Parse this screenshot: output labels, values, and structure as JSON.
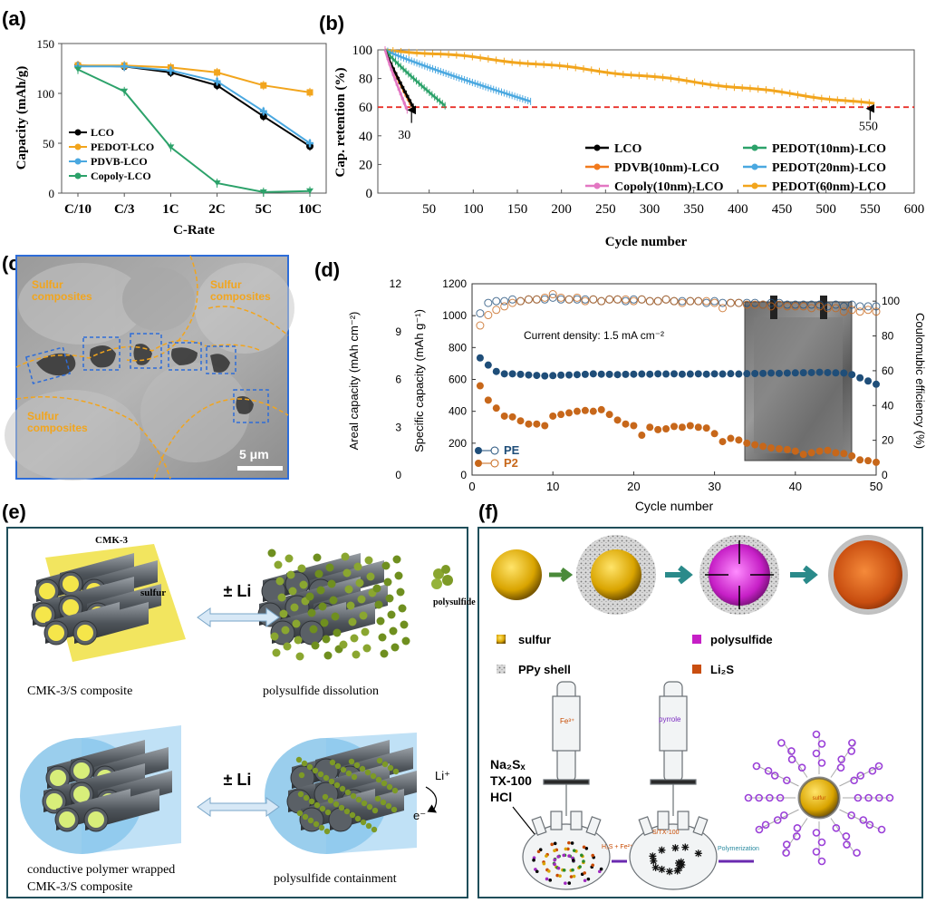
{
  "panels": {
    "a": "(a)",
    "b": "(b)",
    "c": "(c)",
    "d": "(d)",
    "e": "(e)",
    "f": "(f)"
  },
  "colors": {
    "lco": "#000000",
    "pedot": "#f2a51d",
    "pdvb": "#4aa8e0",
    "copoly": "#2ca26a",
    "pink": "#e377c2",
    "orange_line": "#f27a1d",
    "red_dash": "#e8312a",
    "pe": "#1f4e79",
    "p2": "#c7671a",
    "sem_dash": "#f2a51d",
    "sem_box": "#2e6dd8"
  },
  "chart_data": [
    {
      "type": "line",
      "panel": "a",
      "categories": [
        "C/10",
        "C/3",
        "1C",
        "2C",
        "5C",
        "10C"
      ],
      "ylabel": "Capacity (mAh/g)",
      "xlabel": "C-Rate",
      "ylim": [
        0,
        150
      ],
      "yticks": [
        "0",
        "50",
        "100",
        "150"
      ],
      "series": [
        {
          "name": "LCO",
          "values": [
            128,
            127,
            121,
            108,
            77,
            47
          ],
          "color": "#000000"
        },
        {
          "name": "PEDOT-LCO",
          "values": [
            128,
            128,
            126,
            121,
            108,
            101
          ],
          "color": "#f2a51d"
        },
        {
          "name": "PDVB-LCO",
          "values": [
            127,
            127,
            123,
            112,
            82,
            50
          ],
          "color": "#4aa8e0"
        },
        {
          "name": "Copoly-LCO",
          "values": [
            124,
            102,
            46,
            10,
            1,
            2
          ],
          "color": "#2ca26a"
        }
      ],
      "legend": "bottom-left"
    },
    {
      "type": "line",
      "panel": "b",
      "xlabel": "Cycle number",
      "ylabel": "Cap. retention (%)",
      "xlim": [
        0,
        600
      ],
      "ylim": [
        0,
        100
      ],
      "xticks": [
        "50",
        "100",
        "150",
        "200",
        "250",
        "300",
        "350",
        "400",
        "450",
        "500",
        "550",
        "600"
      ],
      "yticks": [
        "0",
        "20",
        "40",
        "60",
        "80",
        "100"
      ],
      "threshold": 60,
      "annotations": [
        "30",
        "550"
      ],
      "series": [
        {
          "name": "LCO",
          "end": 32,
          "endval": 60,
          "color": "#000000"
        },
        {
          "name": "PDVB(10nm)-LCO",
          "end": 30,
          "endval": 61,
          "color": "#f27a1d"
        },
        {
          "name": "Copoly(10nm)-LCO",
          "end": 25,
          "endval": 58,
          "color": "#e377c2"
        },
        {
          "name": "PEDOT(10nm)-LCO",
          "end": 68,
          "endval": 61,
          "color": "#2ca26a"
        },
        {
          "name": "PEDOT(20nm)-LCO",
          "end": 165,
          "endval": 64,
          "color": "#4aa8e0"
        },
        {
          "name": "PEDOT(60nm)-LCO",
          "end": 555,
          "endval": 62,
          "color": "#f2a51d"
        }
      ],
      "legend": "bottom-right"
    },
    {
      "type": "scatter",
      "panel": "d",
      "xlabel": "Cycle number",
      "ylabel": "Specific capacity (mAh g⁻¹)",
      "ylabel_left": "Areal capacity (mAh cm⁻²)",
      "ylabel_right": "Coulomubic efficiency (%)",
      "annotation": "Current density: 1.5 mA cm⁻²",
      "xlim": [
        0,
        50
      ],
      "ylim": [
        0,
        1200
      ],
      "y2lim": [
        0,
        110
      ],
      "xticks": [
        "0",
        "10",
        "20",
        "30",
        "40",
        "50"
      ],
      "yticks": [
        "0",
        "200",
        "400",
        "600",
        "800",
        "1000",
        "1200"
      ],
      "areal_ticks": [
        "0",
        "3",
        "6",
        "9",
        "12"
      ],
      "y2ticks": [
        "0",
        "20",
        "40",
        "60",
        "80",
        "100"
      ],
      "x": [
        1,
        2,
        3,
        4,
        5,
        6,
        7,
        8,
        9,
        10,
        11,
        12,
        13,
        14,
        15,
        16,
        17,
        18,
        19,
        20,
        21,
        22,
        23,
        24,
        25,
        26,
        27,
        28,
        29,
        30,
        31,
        32,
        33,
        34,
        35,
        36,
        37,
        38,
        39,
        40,
        41,
        42,
        43,
        44,
        45,
        46,
        47,
        48,
        49,
        50
      ],
      "series": [
        {
          "name": "PE",
          "axis": "capacity",
          "values": [
            735,
            690,
            650,
            635,
            635,
            632,
            628,
            625,
            622,
            624,
            627,
            628,
            630,
            632,
            635,
            633,
            632,
            630,
            632,
            633,
            634,
            633,
            635,
            634,
            635,
            633,
            634,
            635,
            633,
            635,
            634,
            636,
            634,
            636,
            637,
            638,
            640,
            638,
            640,
            641,
            642,
            643,
            645,
            643,
            641,
            640,
            630,
            610,
            590,
            570
          ],
          "color": "#1f4e79"
        },
        {
          "name": "P2",
          "axis": "capacity",
          "values": [
            560,
            470,
            420,
            370,
            365,
            340,
            320,
            320,
            310,
            370,
            380,
            390,
            400,
            405,
            400,
            410,
            380,
            345,
            320,
            310,
            250,
            300,
            285,
            290,
            305,
            300,
            310,
            300,
            295,
            260,
            210,
            230,
            220,
            200,
            190,
            180,
            170,
            165,
            160,
            150,
            130,
            140,
            150,
            155,
            140,
            135,
            120,
            95,
            90,
            80
          ],
          "color": "#c7671a"
        },
        {
          "name": "PE CE",
          "axis": "efficiency",
          "values": [
            93,
            99,
            100,
            100,
            101,
            100,
            101,
            101,
            101,
            102,
            101,
            101,
            101,
            101,
            101,
            100,
            101,
            101,
            100,
            101,
            101,
            100,
            100,
            101,
            100,
            100,
            100,
            100,
            99,
            100,
            99,
            99,
            99,
            99,
            99,
            98,
            99,
            99,
            98,
            98,
            98,
            98,
            98,
            97,
            98,
            97,
            98,
            97,
            97,
            97
          ],
          "color": "#1f4e79"
        },
        {
          "name": "P2 CE",
          "axis": "efficiency",
          "values": [
            86,
            92,
            95,
            97,
            99,
            100,
            101,
            101,
            102,
            104,
            102,
            101,
            102,
            100,
            101,
            100,
            101,
            101,
            101,
            100,
            101,
            100,
            100,
            101,
            100,
            99,
            100,
            100,
            100,
            99,
            96,
            99,
            99,
            98,
            98,
            98,
            97,
            98,
            97,
            97,
            97,
            96,
            97,
            96,
            96,
            94,
            95,
            94,
            95,
            94
          ],
          "color": "#c7671a"
        }
      ],
      "legend": "bottom-left"
    }
  ],
  "panel_c": {
    "labels": [
      "Sulfur composites",
      "Sulfur composites",
      "Sulfur composites"
    ],
    "scale": "5 μm"
  },
  "panel_e": {
    "cmk": "CMK-3",
    "sulfur": "sulfur",
    "li": "± Li",
    "li2": "± Li",
    "polysulfide": "polysulfide",
    "cap1": "CMK-3/S composite",
    "cap2": "polysulfide dissolution",
    "cap3a": "conductive polymer wrapped",
    "cap3b": "CMK-3/S composite",
    "cap4": "polysulfide containment",
    "li_ion": "Li⁺",
    "electron": "e⁻"
  },
  "panel_f": {
    "leg_sulfur": "sulfur",
    "leg_poly": "polysulfide",
    "leg_ppy": "PPy shell",
    "leg_li2s": "Li₂S",
    "reagents": [
      "Na₂Sₓ",
      "TX-100",
      "HCl"
    ],
    "fe": "Fe³⁺",
    "pyrrole": "pyrrole",
    "h2s": "H₂S + Fe²⁺",
    "stx": "S/TX-100",
    "polymerization": "Polymerization",
    "core": "sulfur"
  }
}
